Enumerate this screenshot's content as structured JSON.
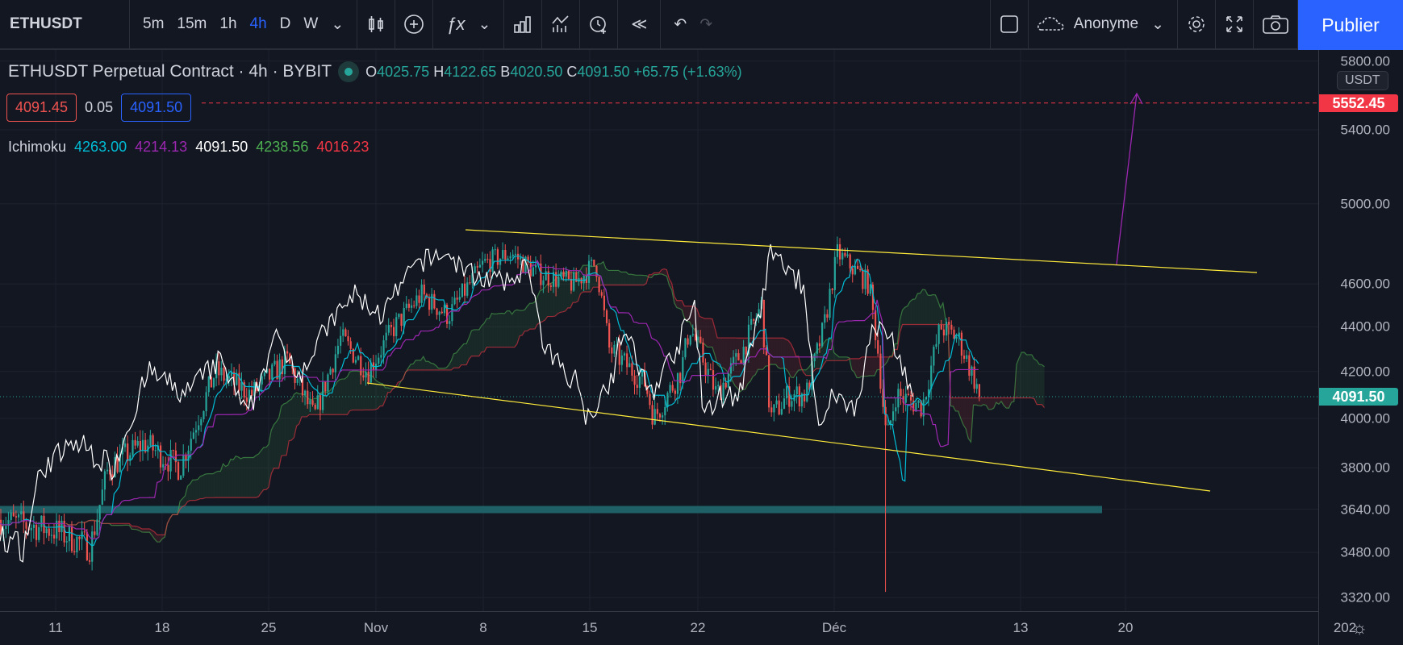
{
  "toolbar": {
    "symbol": "ETHUSDT",
    "intervals": [
      "5m",
      "15m",
      "1h",
      "4h",
      "D",
      "W"
    ],
    "active_interval": "4h",
    "layout_name": "Anonyme",
    "publish_label": "Publier"
  },
  "legend": {
    "title": "ETHUSDT Perpetual Contract · 4h · BYBIT",
    "o_label": "O",
    "o": "4025.75",
    "h_label": "H",
    "h": "4122.65",
    "b_label": "B",
    "b": "4020.50",
    "c_label": "C",
    "c": "4091.50",
    "change": "+65.75 (+1.63%)"
  },
  "order": {
    "sell": "4091.45",
    "spread": "0.05",
    "buy": "4091.50"
  },
  "ichimoku": {
    "label": "Ichimoku",
    "values": [
      "4263.00",
      "4214.13",
      "4091.50",
      "4238.56",
      "4016.23"
    ],
    "colors": [
      "#00bcd4",
      "#9c27b0",
      "#ffffff",
      "#4caf50",
      "#f23645"
    ]
  },
  "price_axis": {
    "currency": "USDT",
    "ticks": [
      "5800.00",
      "5400.00",
      "5000.00",
      "4600.00",
      "4400.00",
      "4200.00",
      "4000.00",
      "3800.00",
      "3640.00",
      "3480.00",
      "3320.00"
    ],
    "alert_price": "5552.45",
    "last_price": "4091.50"
  },
  "time_axis": {
    "labels": [
      "11",
      "18",
      "25",
      "Nov",
      "8",
      "15",
      "22",
      "Déc",
      "13",
      "20",
      "202"
    ]
  },
  "colors": {
    "up": "#26a69a",
    "down": "#ef5350",
    "accent": "#2962ff",
    "trendline": "#ffeb3b",
    "arrow": "#9c27b0",
    "support": "#1f5f66"
  },
  "chart_data": {
    "type": "candlestick",
    "approx_close_path": [
      [
        0,
        3600
      ],
      [
        60,
        3560
      ],
      [
        100,
        3500
      ],
      [
        120,
        3800
      ],
      [
        160,
        3900
      ],
      [
        200,
        3800
      ],
      [
        240,
        4200
      ],
      [
        280,
        4100
      ],
      [
        320,
        4250
      ],
      [
        350,
        4000
      ],
      [
        380,
        4350
      ],
      [
        410,
        4200
      ],
      [
        440,
        4400
      ],
      [
        470,
        4550
      ],
      [
        500,
        4450
      ],
      [
        540,
        4700
      ],
      [
        570,
        4750
      ],
      [
        600,
        4650
      ],
      [
        640,
        4600
      ],
      [
        665,
        4700
      ],
      [
        680,
        4300
      ],
      [
        720,
        4150
      ],
      [
        730,
        4000
      ],
      [
        760,
        4200
      ],
      [
        770,
        4400
      ],
      [
        800,
        4100
      ],
      [
        830,
        4300
      ],
      [
        850,
        4500
      ],
      [
        860,
        4000
      ],
      [
        880,
        4100
      ],
      [
        900,
        4100
      ],
      [
        920,
        4400
      ],
      [
        935,
        4750
      ],
      [
        970,
        4600
      ],
      [
        980,
        4300
      ],
      [
        990,
        3900
      ],
      [
        1000,
        4100
      ],
      [
        1030,
        4050
      ],
      [
        1050,
        4400
      ],
      [
        1070,
        4350
      ],
      [
        1095,
        4091.5
      ]
    ]
  }
}
